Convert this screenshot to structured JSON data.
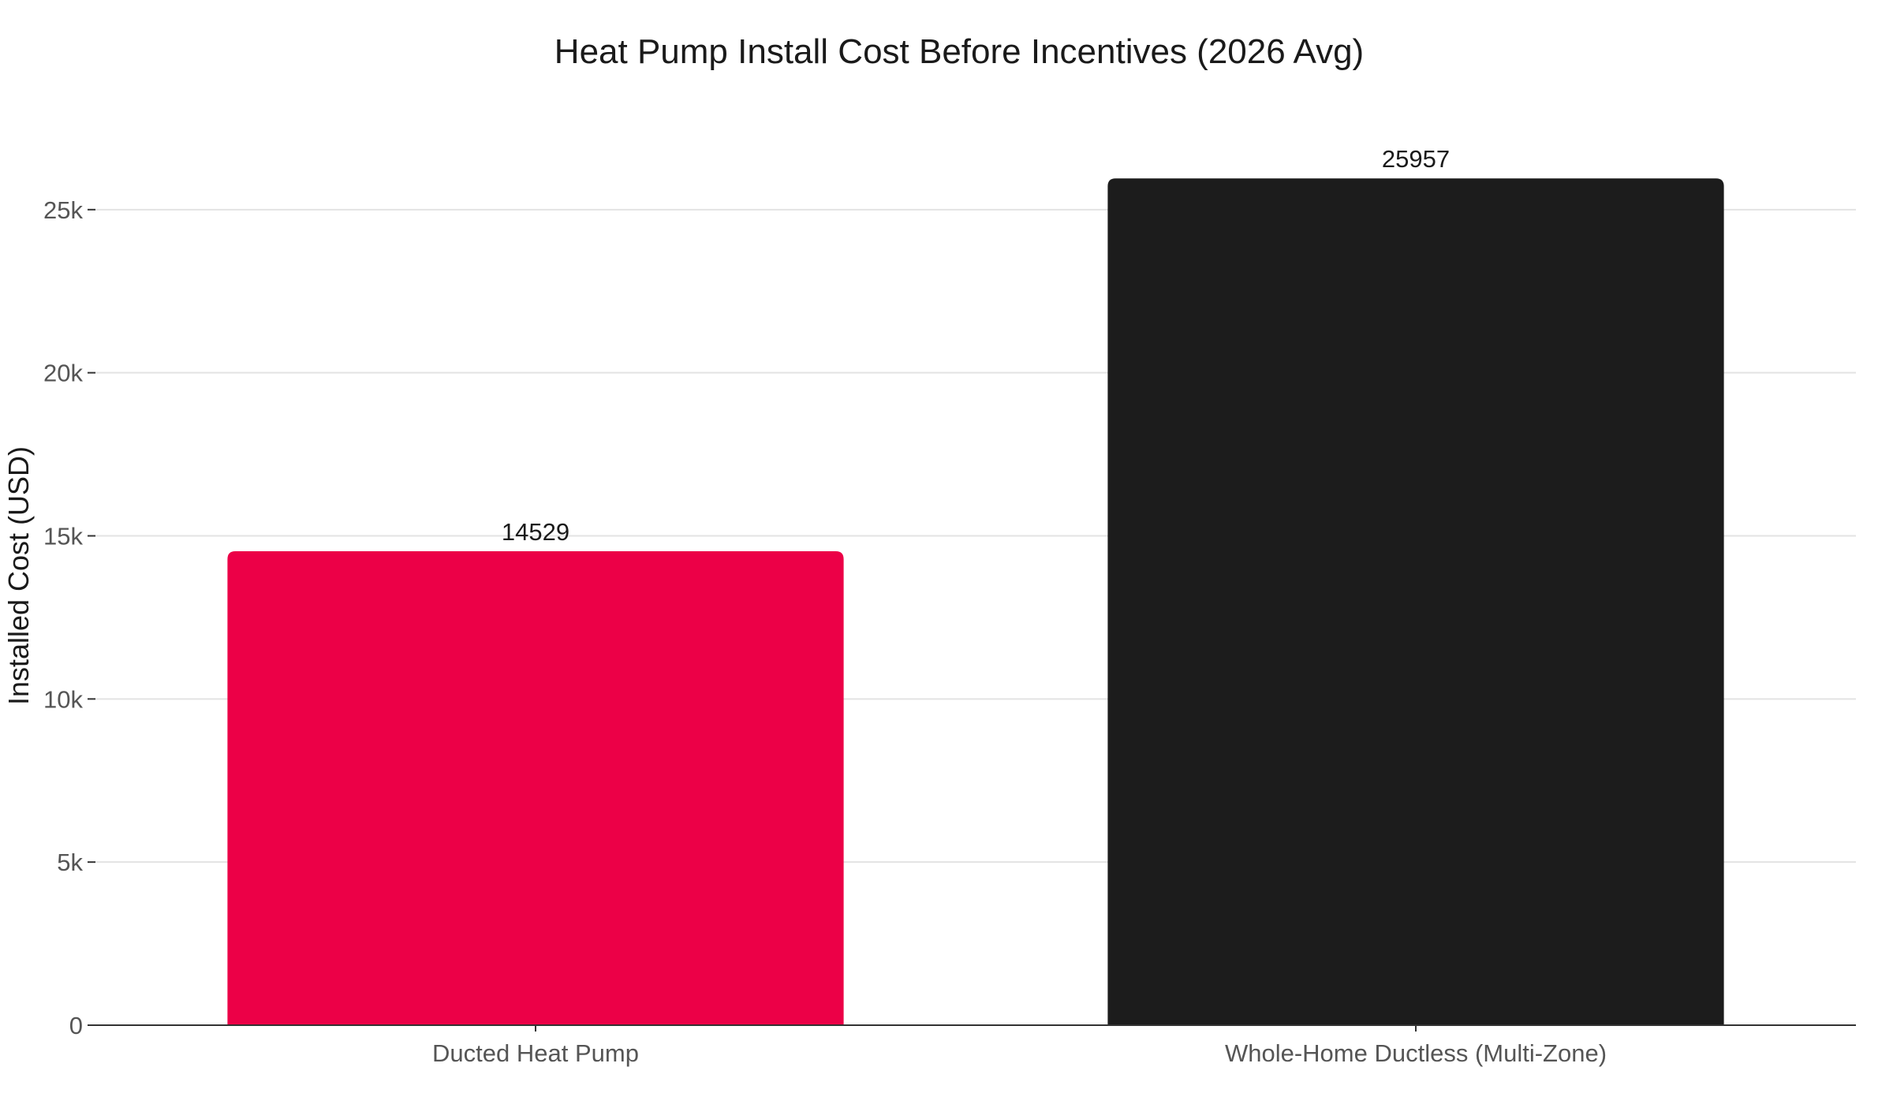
{
  "chart_data": {
    "type": "bar",
    "title": "Heat Pump Install Cost Before Incentives (2026 Avg)",
    "xlabel": "",
    "ylabel": "Installed Cost (USD)",
    "categories": [
      "Ducted Heat Pump",
      "Whole-Home Ductless (Multi-Zone)"
    ],
    "values": [
      14529,
      25957
    ],
    "data_labels": [
      "14529",
      "25957"
    ],
    "colors": [
      "#EC0047",
      "#1C1C1C"
    ],
    "ylim": [
      0,
      27800
    ],
    "yticks": [
      0,
      5000,
      10000,
      15000,
      20000,
      25000
    ],
    "ytick_labels": [
      "0",
      "5k",
      "10k",
      "15k",
      "20k",
      "25k"
    ],
    "grid": true,
    "legend": "none"
  }
}
